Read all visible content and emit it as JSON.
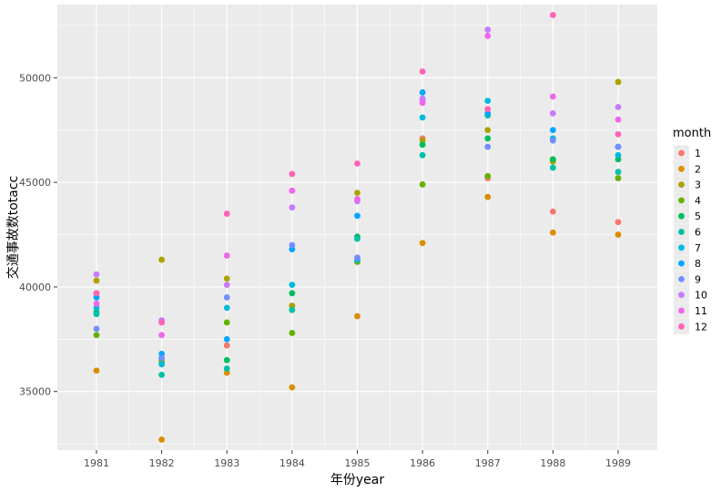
{
  "chart_data": {
    "type": "scatter",
    "title": "",
    "xlabel": "年份year",
    "ylabel": "交通事故数totacc",
    "categories": [
      "1981",
      "1982",
      "1983",
      "1984",
      "1985",
      "1986",
      "1987",
      "1988",
      "1989"
    ],
    "yticks": [
      "35000",
      "40000",
      "45000",
      "50000"
    ],
    "ylim": [
      32200,
      53500
    ],
    "grid": true,
    "legend_title": "month",
    "legend_position": "right",
    "series": [
      {
        "name": "1",
        "color": "#F8766D",
        "values": [
          39700,
          36500,
          37200,
          39100,
          41200,
          47100,
          45200,
          43600,
          43100
        ]
      },
      {
        "name": "2",
        "color": "#DB8E00",
        "values": [
          36000,
          32700,
          35900,
          35200,
          38600,
          42100,
          44300,
          42600,
          42500
        ]
      },
      {
        "name": "3",
        "color": "#AEA200",
        "values": [
          40300,
          41300,
          40400,
          39100,
          44500,
          47000,
          47500,
          46000,
          49800
        ]
      },
      {
        "name": "4",
        "color": "#64B200",
        "values": [
          37700,
          36400,
          38300,
          37800,
          41200,
          44900,
          45300,
          46100,
          45200
        ]
      },
      {
        "name": "5",
        "color": "#00BD5C",
        "values": [
          38800,
          36600,
          36500,
          39700,
          42400,
          46800,
          47100,
          46100,
          46100
        ]
      },
      {
        "name": "6",
        "color": "#00C1A7",
        "values": [
          38700,
          35800,
          36100,
          38900,
          42300,
          46300,
          48200,
          45700,
          45500
        ]
      },
      {
        "name": "7",
        "color": "#00BADE",
        "values": [
          39000,
          36300,
          39000,
          40100,
          41300,
          48100,
          48900,
          47100,
          46300
        ]
      },
      {
        "name": "8",
        "color": "#00A6FF",
        "values": [
          39500,
          36800,
          37500,
          41800,
          43400,
          49300,
          48300,
          47500,
          46700
        ]
      },
      {
        "name": "9",
        "color": "#748DFF",
        "values": [
          38000,
          36600,
          39500,
          42000,
          41400,
          48900,
          46700,
          47000,
          46700
        ]
      },
      {
        "name": "10",
        "color": "#C67BFF",
        "values": [
          40600,
          38400,
          40100,
          43800,
          44100,
          49000,
          52300,
          48300,
          48600
        ]
      },
      {
        "name": "11",
        "color": "#F066EA",
        "values": [
          39200,
          37700,
          41500,
          44600,
          44200,
          48800,
          52000,
          49100,
          48000
        ]
      },
      {
        "name": "12",
        "color": "#FF63B6",
        "values": [
          39700,
          38300,
          43500,
          45400,
          45900,
          50300,
          48500,
          53000,
          47300
        ]
      }
    ]
  }
}
